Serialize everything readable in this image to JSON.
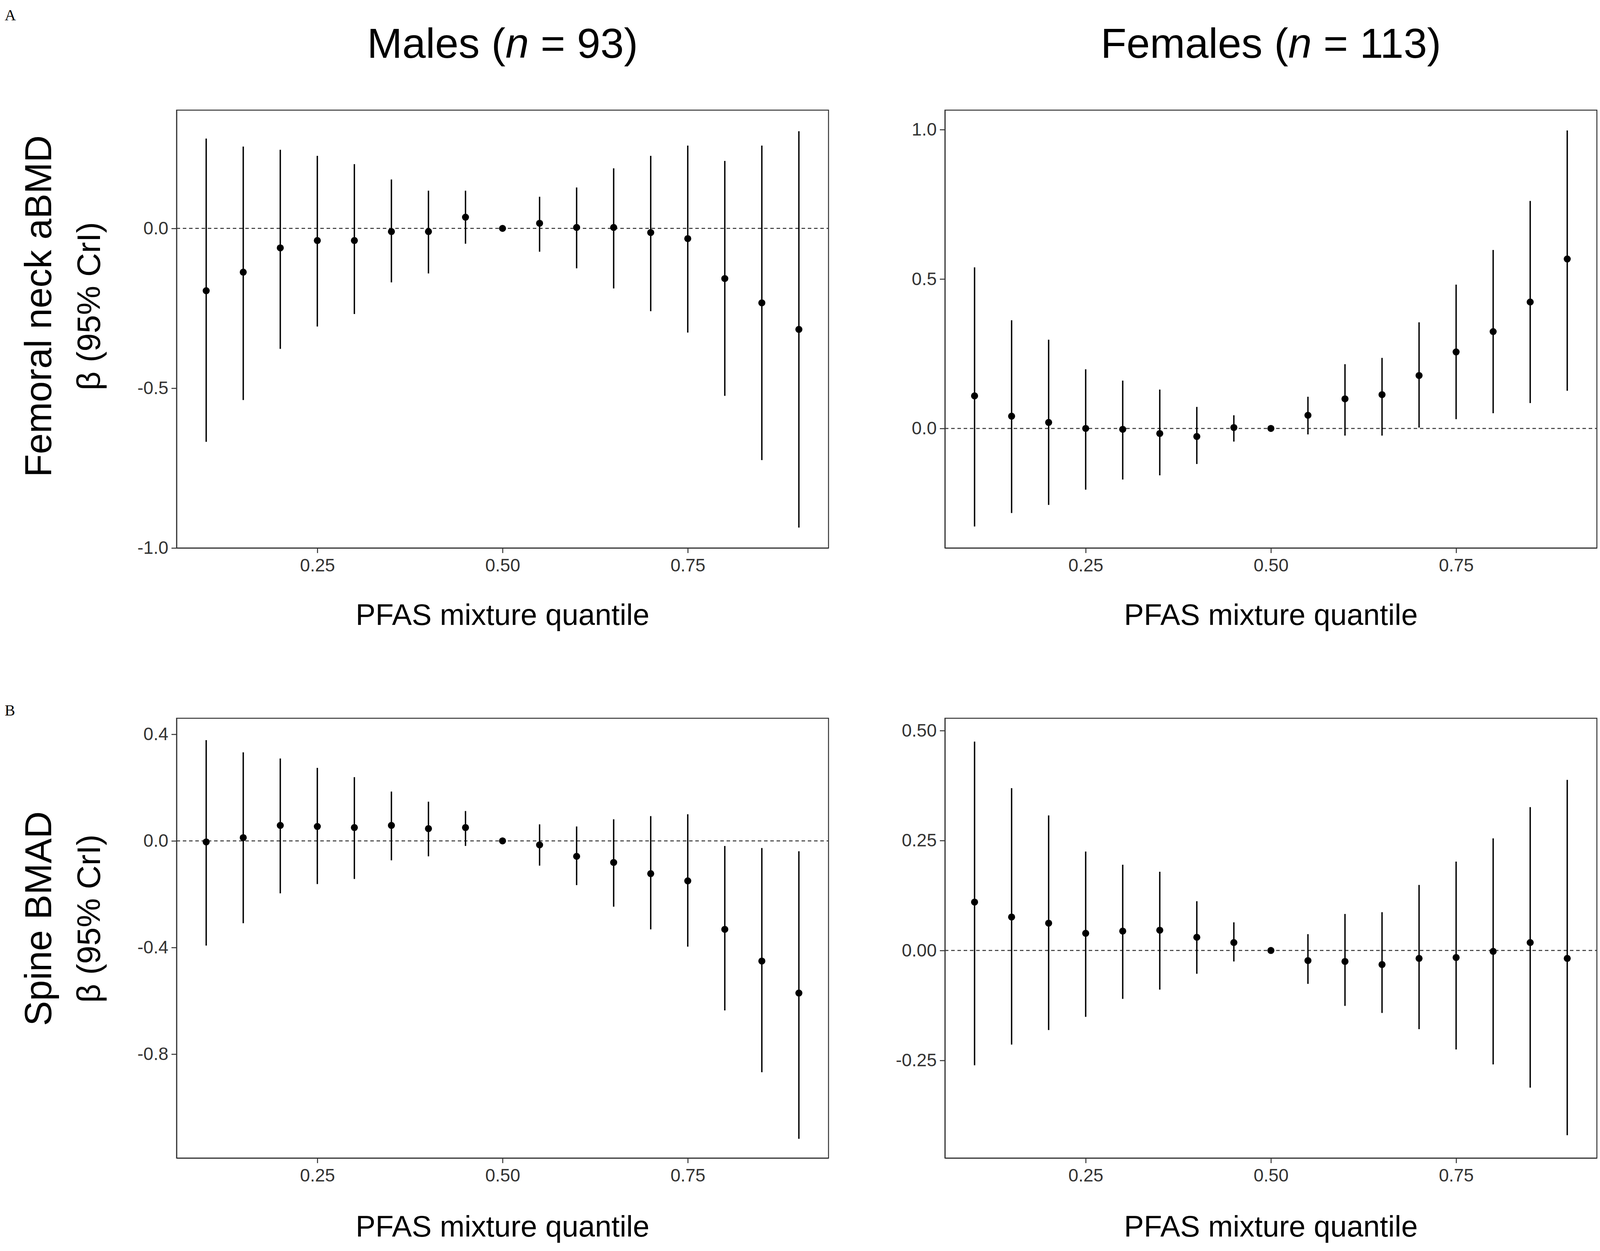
{
  "chart_data": [
    {
      "type": "scatter",
      "panel_label": "A",
      "title": "Males (n = 93)",
      "ylabel": [
        "Femoral neck aBMD",
        "β (95% CrI)"
      ],
      "xlabel": "PFAS mixture quantile",
      "x": [
        0.1,
        0.15,
        0.2,
        0.25,
        0.3,
        0.35,
        0.4,
        0.45,
        0.5,
        0.55,
        0.6,
        0.65,
        0.7,
        0.75,
        0.8,
        0.85,
        0.9
      ],
      "values": [
        -0.195,
        -0.137,
        -0.061,
        -0.038,
        -0.038,
        -0.01,
        -0.01,
        0.035,
        0,
        0.016,
        0.003,
        0.003,
        -0.013,
        -0.032,
        -0.157,
        -0.233,
        -0.316
      ],
      "lower": [
        -0.668,
        -0.537,
        -0.377,
        -0.307,
        -0.268,
        -0.169,
        -0.141,
        -0.048,
        0,
        -0.073,
        -0.125,
        -0.188,
        -0.259,
        -0.326,
        -0.524,
        -0.725,
        -0.936
      ],
      "upper": [
        0.281,
        0.256,
        0.246,
        0.227,
        0.201,
        0.153,
        0.118,
        0.118,
        0,
        0.099,
        0.128,
        0.188,
        0.227,
        0.259,
        0.211,
        0.259,
        0.304
      ],
      "xlim": [
        0.06,
        0.94
      ],
      "xticks": [
        0.25,
        {
          "value": 0.5,
          "label": "0.50"
        },
        0.75
      ],
      "ylim": [
        -1.0,
        0.37
      ],
      "yticks": [
        {
          "value": 0,
          "label": "0.0"
        },
        -0.5,
        {
          "value": -1,
          "label": "-1.0"
        }
      ],
      "hline": 0,
      "color": "#000000",
      "marker": "circle",
      "line_style": "dashed",
      "grid": false
    },
    {
      "type": "scatter",
      "title": "Females (n = 113)",
      "xlabel": "PFAS mixture quantile",
      "x": [
        0.1,
        0.15,
        0.2,
        0.25,
        0.3,
        0.35,
        0.4,
        0.45,
        0.5,
        0.55,
        0.6,
        0.65,
        0.7,
        0.75,
        0.8,
        0.85,
        0.9
      ],
      "values": [
        0.109,
        0.041,
        0.02,
        0,
        -0.003,
        -0.017,
        -0.027,
        0.003,
        0,
        0.044,
        0.099,
        0.113,
        0.177,
        0.256,
        0.324,
        0.423,
        0.567
      ],
      "lower": [
        -0.328,
        -0.283,
        -0.256,
        -0.205,
        -0.171,
        -0.157,
        -0.119,
        -0.044,
        0,
        -0.02,
        -0.024,
        -0.024,
        0.003,
        0.031,
        0.051,
        0.085,
        0.126
      ],
      "upper": [
        0.539,
        0.362,
        0.297,
        0.198,
        0.16,
        0.13,
        0.072,
        0.044,
        0,
        0.106,
        0.215,
        0.236,
        0.355,
        0.481,
        0.597,
        0.761,
        0.997
      ],
      "xlim": [
        0.06,
        0.94
      ],
      "xticks": [
        0.25,
        {
          "value": 0.5,
          "label": "0.50"
        },
        0.75
      ],
      "ylim": [
        -0.4,
        1.065
      ],
      "yticks": [
        {
          "value": 0,
          "label": "0.0"
        },
        0.5,
        {
          "value": 1,
          "label": "1.0"
        }
      ],
      "hline": 0,
      "color": "#000000",
      "marker": "circle",
      "line_style": "dashed",
      "grid": false
    },
    {
      "type": "scatter",
      "panel_label": "B",
      "ylabel": [
        "Spine BMAD",
        "β (95% CrI)"
      ],
      "xlabel": "PFAS mixture quantile",
      "x": [
        0.1,
        0.15,
        0.2,
        0.25,
        0.3,
        0.35,
        0.4,
        0.45,
        0.5,
        0.55,
        0.6,
        0.65,
        0.7,
        0.75,
        0.8,
        0.85,
        0.9
      ],
      "values": [
        -0.004,
        0.012,
        0.058,
        0.054,
        0.05,
        0.058,
        0.046,
        0.05,
        0,
        -0.015,
        -0.058,
        -0.081,
        -0.123,
        -0.15,
        -0.332,
        -0.451,
        -0.571
      ],
      "lower": [
        -0.393,
        -0.309,
        -0.197,
        -0.162,
        -0.143,
        -0.073,
        -0.058,
        -0.019,
        0,
        -0.093,
        -0.166,
        -0.247,
        -0.332,
        -0.397,
        -0.636,
        -0.868,
        -1.118
      ],
      "upper": [
        0.378,
        0.332,
        0.309,
        0.274,
        0.239,
        0.185,
        0.147,
        0.112,
        0,
        0.062,
        0.054,
        0.081,
        0.093,
        0.1,
        -0.019,
        -0.027,
        -0.039
      ],
      "xlim": [
        0.06,
        0.94
      ],
      "xticks": [
        0.25,
        {
          "value": 0.5,
          "label": "0.50"
        },
        0.75
      ],
      "ylim": [
        -1.19,
        0.46
      ],
      "yticks": [
        0.4,
        {
          "value": 0,
          "label": "0.0"
        },
        -0.4,
        -0.8
      ],
      "hline": 0,
      "color": "#000000",
      "marker": "circle",
      "line_style": "dashed",
      "grid": false
    },
    {
      "type": "scatter",
      "xlabel": "PFAS mixture quantile",
      "x": [
        0.1,
        0.15,
        0.2,
        0.25,
        0.3,
        0.35,
        0.4,
        0.45,
        0.5,
        0.55,
        0.6,
        0.65,
        0.7,
        0.75,
        0.8,
        0.85,
        0.9
      ],
      "values": [
        0.11,
        0.076,
        0.062,
        0.039,
        0.044,
        0.046,
        0.03,
        0.018,
        0,
        -0.023,
        -0.025,
        -0.032,
        -0.018,
        -0.016,
        -0.002,
        0.018,
        -0.018
      ],
      "lower": [
        -0.261,
        -0.214,
        -0.181,
        -0.151,
        -0.11,
        -0.089,
        -0.053,
        -0.025,
        0,
        -0.076,
        -0.126,
        -0.142,
        -0.179,
        -0.225,
        -0.259,
        -0.312,
        -0.42
      ],
      "upper": [
        0.475,
        0.369,
        0.307,
        0.225,
        0.195,
        0.179,
        0.112,
        0.064,
        0,
        0.037,
        0.083,
        0.087,
        0.149,
        0.202,
        0.255,
        0.326,
        0.388
      ],
      "xlim": [
        0.06,
        0.94
      ],
      "xticks": [
        0.25,
        {
          "value": 0.5,
          "label": "0.50"
        },
        0.75
      ],
      "ylim": [
        -0.472,
        0.528
      ],
      "yticks": [
        {
          "value": 0.5,
          "label": "0.50"
        },
        0.25,
        {
          "value": 0,
          "label": "0.00"
        },
        -0.25
      ],
      "hline": 0,
      "color": "#000000",
      "marker": "circle",
      "line_style": "dashed",
      "grid": false
    }
  ]
}
